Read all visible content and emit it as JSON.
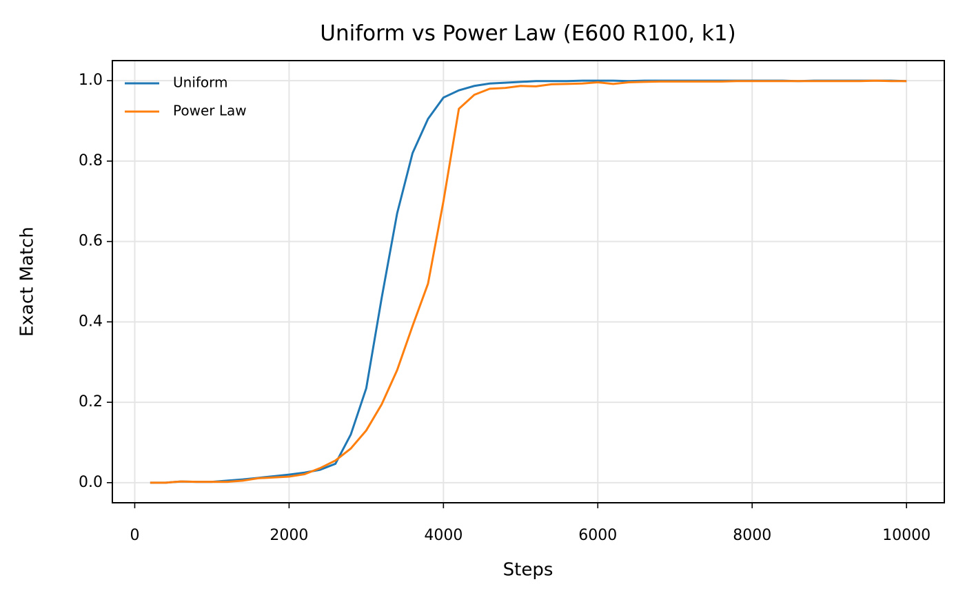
{
  "chart_data": {
    "type": "line",
    "title": "Uniform vs Power Law (E600 R100, k1)",
    "x_label": "Steps",
    "y_label": "Exact Match",
    "x": [
      200,
      400,
      600,
      800,
      1000,
      1200,
      1400,
      1600,
      1800,
      2000,
      2200,
      2400,
      2600,
      2800,
      3000,
      3200,
      3400,
      3600,
      3800,
      4000,
      4200,
      4400,
      4600,
      4800,
      5000,
      5200,
      5400,
      5600,
      5800,
      6000,
      6200,
      6400,
      6600,
      6800,
      7000,
      7200,
      7400,
      7600,
      7800,
      8000,
      8200,
      8400,
      8600,
      8800,
      9000,
      9200,
      9400,
      9600,
      9800,
      10000
    ],
    "series": [
      {
        "name": "Uniform",
        "color": "#1f77b4",
        "values": [
          0.0,
          0.0,
          0.003,
          0.002,
          0.002,
          0.005,
          0.008,
          0.012,
          0.016,
          0.02,
          0.025,
          0.032,
          0.047,
          0.12,
          0.235,
          0.46,
          0.67,
          0.82,
          0.905,
          0.958,
          0.976,
          0.987,
          0.993,
          0.995,
          0.997,
          0.999,
          0.999,
          0.999,
          1.0,
          1.0,
          1.0,
          0.999,
          1.0,
          1.0,
          1.0,
          1.0,
          1.0,
          1.0,
          1.0,
          1.0,
          1.0,
          1.0,
          0.999,
          1.0,
          1.0,
          1.0,
          1.0,
          1.0,
          1.0,
          0.999
        ]
      },
      {
        "name": "Power Law",
        "color": "#ff7f0e",
        "values": [
          0.0,
          0.0,
          0.003,
          0.002,
          0.002,
          0.002,
          0.005,
          0.011,
          0.013,
          0.015,
          0.021,
          0.036,
          0.055,
          0.085,
          0.13,
          0.195,
          0.28,
          0.39,
          0.495,
          0.7,
          0.93,
          0.965,
          0.98,
          0.982,
          0.987,
          0.986,
          0.991,
          0.992,
          0.993,
          0.996,
          0.992,
          0.996,
          0.997,
          0.998,
          0.998,
          0.998,
          0.998,
          0.998,
          0.999,
          0.999,
          0.999,
          0.999,
          0.999,
          0.999,
          0.999,
          0.999,
          0.999,
          1.0,
          0.999,
          0.999
        ]
      }
    ],
    "xlim": [
      -290,
      10490
    ],
    "ylim": [
      -0.05,
      1.05
    ],
    "xticks": [
      0,
      2000,
      4000,
      6000,
      8000,
      10000
    ],
    "yticks": [
      {
        "value": 0,
        "label": "0.0"
      },
      {
        "value": 0.2,
        "label": "0.2"
      },
      {
        "value": 0.4,
        "label": "0.4"
      },
      {
        "value": 0.6,
        "label": "0.6"
      },
      {
        "value": 0.8,
        "label": "0.8"
      },
      {
        "value": 1,
        "label": "1.0"
      }
    ],
    "grid": true,
    "legend": "upper left"
  }
}
